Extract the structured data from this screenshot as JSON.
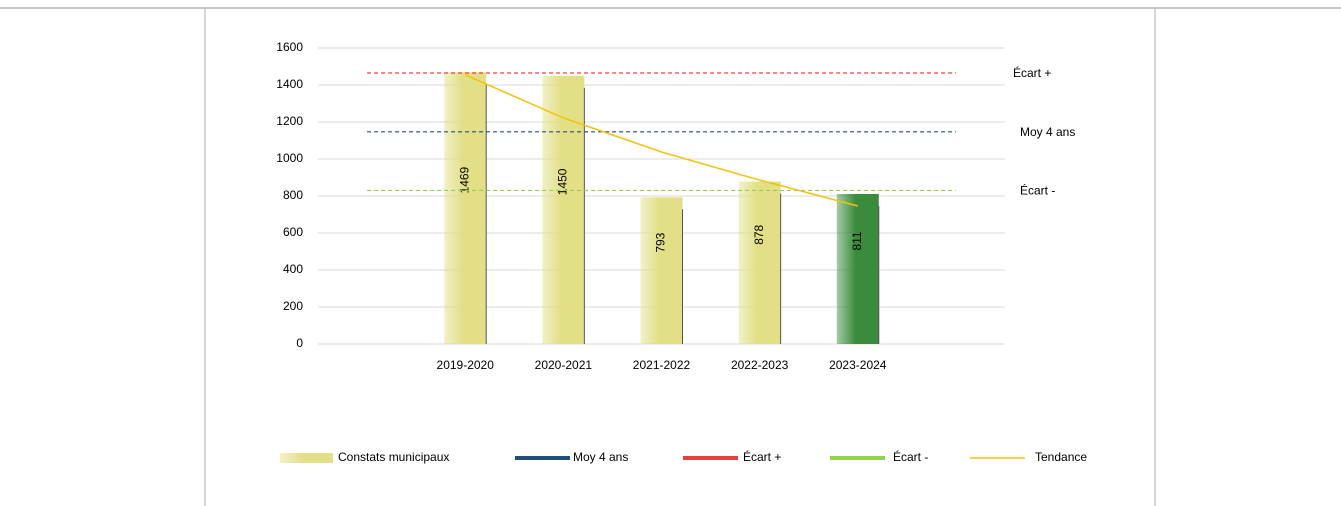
{
  "chart_data": {
    "type": "bar",
    "categories": [
      null,
      "2019-2020",
      "2020-2021",
      "2021-2022",
      "2022-2023",
      "2023-2024",
      null
    ],
    "series": [
      {
        "name": "Constats municipaux",
        "type": "bar",
        "color": "#e2df86",
        "colors": [
          null,
          "#e2df86",
          "#e2df86",
          "#e2df86",
          "#e2df86",
          "#3a8c3c",
          null
        ],
        "values": [
          null,
          1469,
          1450,
          793,
          878,
          811,
          null
        ]
      },
      {
        "name": "Moy 4 ans",
        "type": "line",
        "dashed": true,
        "color": "#1f4e79",
        "values": [
          1147,
          1147,
          1147,
          1147,
          1147,
          1147,
          1147
        ]
      },
      {
        "name": "Écart +",
        "type": "line",
        "dashed": true,
        "color": "#e8403a",
        "values": [
          1465,
          1465,
          1465,
          1465,
          1465,
          1465,
          1465
        ]
      },
      {
        "name": "Écart -",
        "type": "line",
        "dashed": true,
        "color": "#92d050",
        "values": [
          830,
          830,
          830,
          830,
          830,
          830,
          830
        ]
      },
      {
        "name": "Tendance",
        "type": "line",
        "dashed": false,
        "color": "#f2c40f",
        "values": [
          null,
          1455,
          1222,
          1038,
          886,
          746,
          null
        ]
      }
    ],
    "annotations": [
      "Écart +",
      "Moy 4 ans",
      "Écart -"
    ],
    "ylim": [
      0,
      1600
    ],
    "yticks": [
      0,
      200,
      400,
      600,
      800,
      1000,
      1200,
      1400,
      1600
    ],
    "grid": true
  }
}
